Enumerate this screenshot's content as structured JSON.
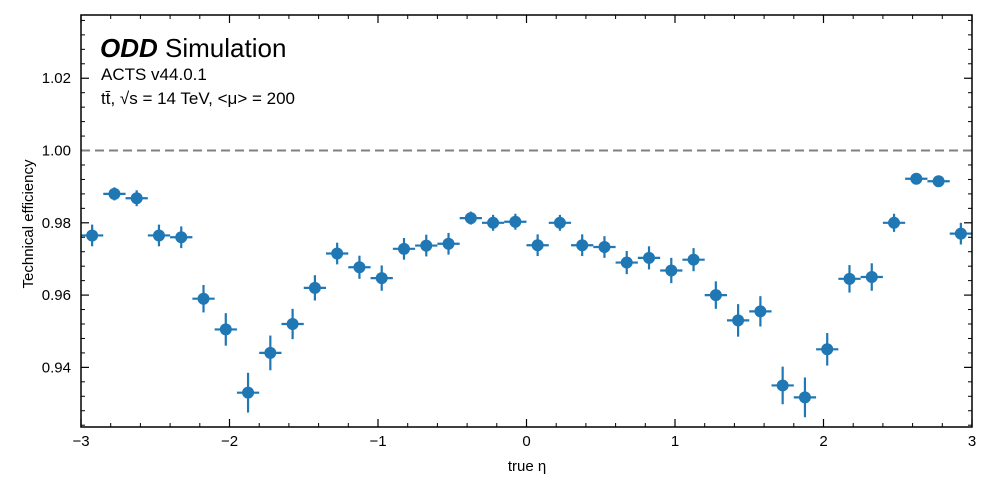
{
  "chart_data": {
    "type": "scatter",
    "title": "",
    "xlabel": "true η",
    "ylabel": "Technical efficiency",
    "xlim": [
      -3,
      3
    ],
    "ylim": [
      0.9235,
      1.0375
    ],
    "xticks": [
      -3,
      -2,
      -1,
      0,
      1,
      2,
      3
    ],
    "xtick_labels": [
      "−3",
      "−2",
      "−1",
      "0",
      "1",
      "2",
      "3"
    ],
    "yticks": [
      0.94,
      0.96,
      0.98,
      1.0,
      1.02
    ],
    "ytick_labels": [
      "0.94",
      "0.96",
      "0.98",
      "1.00",
      "1.02"
    ],
    "reference_line": {
      "y": 1.0,
      "style": "dashed",
      "color": "#808080"
    },
    "annotations": {
      "experiment_bold": "ODD",
      "experiment_rest": "Simulation",
      "software": "ACTS v44.0.1",
      "process": "tt̄, √s = 14 TeV, <μ> = 200"
    },
    "grid": false,
    "marker_color": "#1f77b4",
    "x_halfwidth": 0.075,
    "series": [
      {
        "x": [
          -2.925,
          -2.775,
          -2.625,
          -2.475,
          -2.325,
          -2.175,
          -2.025,
          -1.875,
          -1.725,
          -1.575,
          -1.425,
          -1.275,
          -1.125,
          -0.975,
          -0.825,
          -0.675,
          -0.525,
          -0.375,
          -0.225,
          -0.075,
          0.075,
          0.225,
          0.375,
          0.525,
          0.675,
          0.825,
          0.975,
          1.125,
          1.275,
          1.425,
          1.575,
          1.725,
          1.875,
          2.025,
          2.175,
          2.325,
          2.475,
          2.625,
          2.775,
          2.925
        ],
        "y": [
          0.9765,
          0.988,
          0.9868,
          0.9765,
          0.976,
          0.959,
          0.9505,
          0.933,
          0.944,
          0.952,
          0.962,
          0.9715,
          0.9677,
          0.9647,
          0.9728,
          0.9737,
          0.9742,
          0.9813,
          0.98,
          0.9803,
          0.9738,
          0.98,
          0.9738,
          0.9733,
          0.969,
          0.9703,
          0.9668,
          0.9698,
          0.96,
          0.953,
          0.9555,
          0.935,
          0.9317,
          0.945,
          0.9645,
          0.965,
          0.98,
          0.9922,
          0.9915,
          0.977
        ],
        "yerr": [
          0.003,
          0.0018,
          0.0022,
          0.003,
          0.003,
          0.0038,
          0.0045,
          0.0055,
          0.0048,
          0.0042,
          0.0035,
          0.003,
          0.0032,
          0.0035,
          0.003,
          0.003,
          0.003,
          0.0018,
          0.0022,
          0.0022,
          0.003,
          0.0022,
          0.003,
          0.003,
          0.0032,
          0.0032,
          0.0035,
          0.0032,
          0.0038,
          0.0045,
          0.0042,
          0.0052,
          0.0055,
          0.0045,
          0.0038,
          0.0038,
          0.0025,
          0.0013,
          0.0013,
          0.003
        ]
      }
    ]
  }
}
